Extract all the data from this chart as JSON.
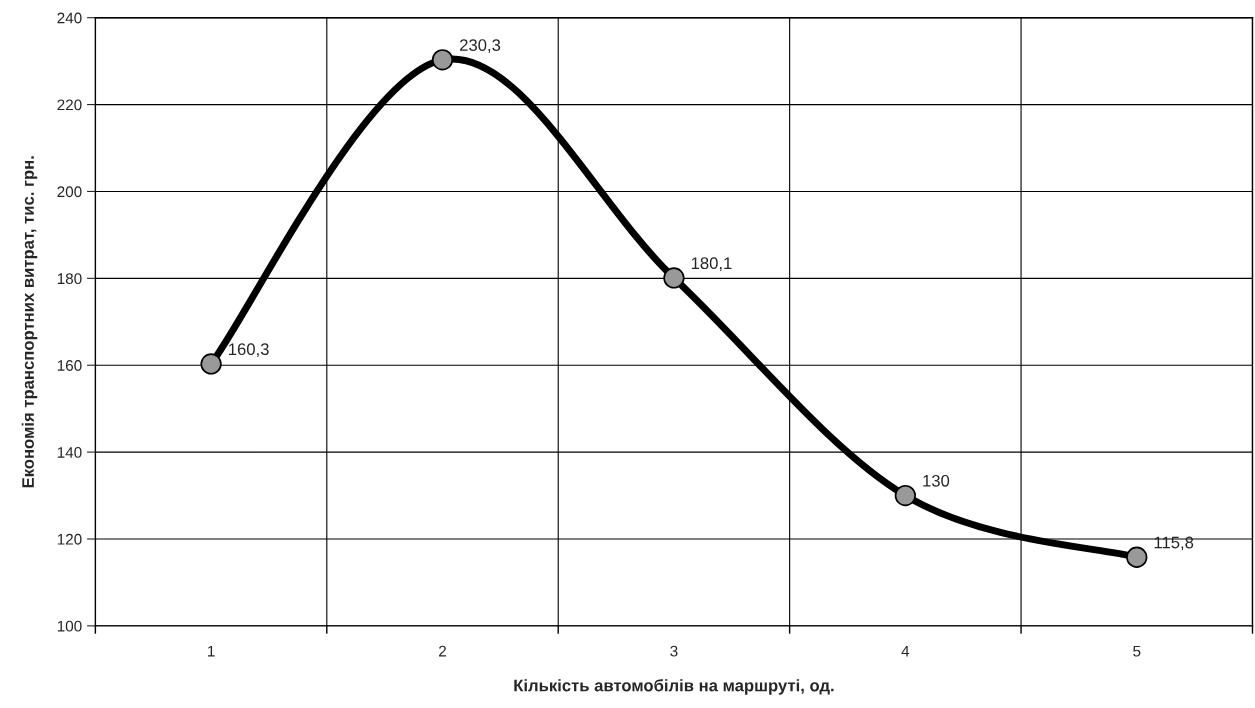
{
  "chart_data": {
    "type": "line",
    "xlabel": "Кількість автомобілів на маршруті, од.",
    "ylabel": "Економія транспортних витрат, тис. грн.",
    "categories": [
      "1",
      "2",
      "3",
      "4",
      "5"
    ],
    "series": [
      {
        "color": "#000000",
        "values": [
          160.3,
          230.3,
          180.1,
          130,
          115.8
        ],
        "value_labels": [
          "160,3",
          "230,3",
          "180,1",
          "130",
          "115,8"
        ]
      }
    ],
    "ylim": [
      100,
      240
    ],
    "yticks": [
      100,
      120,
      140,
      160,
      180,
      200,
      220,
      240
    ],
    "grid": true,
    "marker": "circle",
    "line_style": "solid"
  }
}
